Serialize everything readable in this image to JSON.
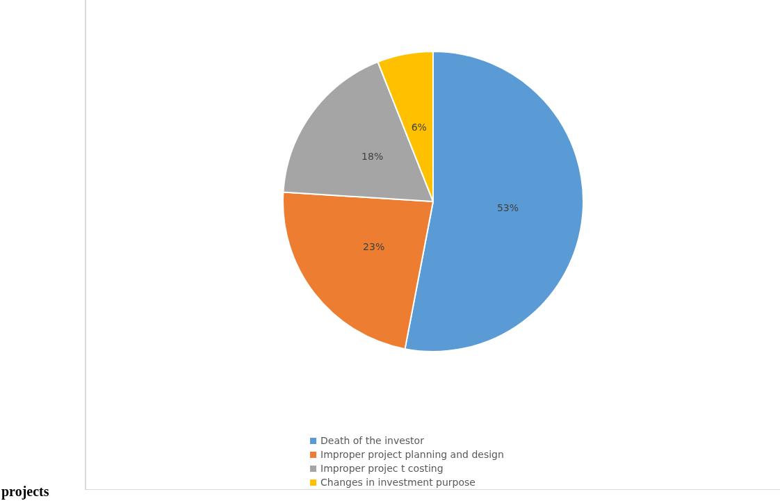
{
  "chart_data": {
    "type": "pie",
    "categories": [
      "Death of the investor",
      "Improper project planning and design",
      "Improper projec t costing",
      "Changes in investment purpose"
    ],
    "values": [
      53,
      23,
      18,
      6
    ],
    "colors": [
      "#5b9bd5",
      "#ed7d31",
      "#a5a5a5",
      "#ffc000"
    ],
    "value_labels": [
      "53%",
      "23%",
      "18%",
      "6%"
    ],
    "legend": "bottom",
    "annotations": [
      "projects"
    ]
  }
}
